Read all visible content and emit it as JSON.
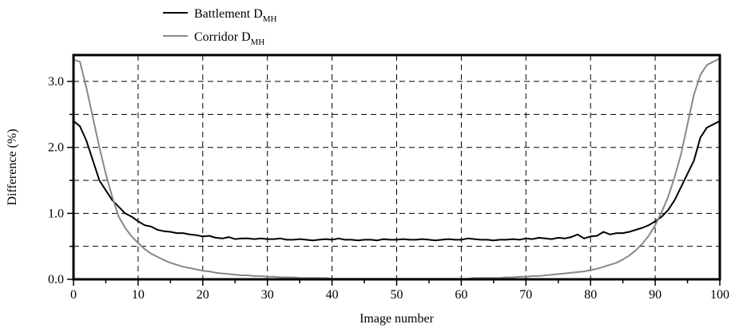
{
  "chart_data": {
    "type": "line",
    "title": "",
    "xlabel": "Image number",
    "ylabel": "Difference (%)",
    "xlim": [
      0,
      100
    ],
    "ylim": [
      0,
      3.4
    ],
    "x_ticks": [
      "0",
      "10",
      "20",
      "30",
      "40",
      "50",
      "60",
      "70",
      "80",
      "90",
      "100"
    ],
    "y_ticks": [
      "0.0",
      "1.0",
      "2.0",
      "3.0"
    ],
    "grid": "dashed, every 10 on x and every 0.5 on y",
    "legend_position": "top-left, above plot",
    "series": [
      {
        "name": "Battlement D",
        "name_subscript": "MH",
        "color": "#000000",
        "x": [
          0,
          1,
          2,
          3,
          4,
          5,
          6,
          7,
          8,
          9,
          10,
          11,
          12,
          13,
          14,
          15,
          16,
          17,
          18,
          19,
          20,
          21,
          22,
          23,
          24,
          25,
          26,
          27,
          28,
          29,
          30,
          31,
          32,
          33,
          34,
          35,
          36,
          37,
          38,
          39,
          40,
          41,
          42,
          43,
          44,
          45,
          46,
          47,
          48,
          49,
          50,
          51,
          52,
          53,
          54,
          55,
          56,
          57,
          58,
          59,
          60,
          61,
          62,
          63,
          64,
          65,
          66,
          67,
          68,
          69,
          70,
          71,
          72,
          73,
          74,
          75,
          76,
          77,
          78,
          79,
          80,
          81,
          82,
          83,
          84,
          85,
          86,
          87,
          88,
          89,
          90,
          91,
          92,
          93,
          94,
          95,
          96,
          97,
          98,
          99,
          100
        ],
        "values": [
          2.4,
          2.32,
          2.1,
          1.8,
          1.5,
          1.35,
          1.2,
          1.1,
          1.0,
          0.95,
          0.88,
          0.82,
          0.8,
          0.75,
          0.73,
          0.72,
          0.7,
          0.7,
          0.68,
          0.67,
          0.65,
          0.66,
          0.63,
          0.62,
          0.64,
          0.61,
          0.62,
          0.62,
          0.61,
          0.62,
          0.61,
          0.61,
          0.62,
          0.6,
          0.6,
          0.61,
          0.6,
          0.59,
          0.6,
          0.61,
          0.6,
          0.62,
          0.6,
          0.6,
          0.59,
          0.6,
          0.6,
          0.59,
          0.61,
          0.6,
          0.6,
          0.61,
          0.6,
          0.6,
          0.61,
          0.6,
          0.59,
          0.6,
          0.61,
          0.6,
          0.6,
          0.62,
          0.61,
          0.6,
          0.6,
          0.59,
          0.6,
          0.6,
          0.61,
          0.6,
          0.62,
          0.61,
          0.63,
          0.62,
          0.61,
          0.63,
          0.62,
          0.64,
          0.68,
          0.62,
          0.65,
          0.66,
          0.72,
          0.68,
          0.7,
          0.7,
          0.72,
          0.75,
          0.78,
          0.82,
          0.88,
          0.95,
          1.05,
          1.2,
          1.4,
          1.6,
          1.8,
          2.15,
          2.3,
          2.35,
          2.4
        ]
      },
      {
        "name": "Corridor D",
        "name_subscript": "MH",
        "color": "#888888",
        "x": [
          0,
          1,
          2,
          3,
          4,
          5,
          6,
          7,
          8,
          9,
          10,
          11,
          12,
          13,
          14,
          15,
          16,
          17,
          18,
          19,
          20,
          21,
          22,
          23,
          24,
          25,
          26,
          27,
          28,
          29,
          30,
          31,
          32,
          33,
          34,
          35,
          36,
          37,
          38,
          39,
          40,
          41,
          42,
          43,
          44,
          45,
          46,
          47,
          48,
          49,
          50,
          51,
          52,
          53,
          54,
          55,
          56,
          57,
          58,
          59,
          60,
          61,
          62,
          63,
          64,
          65,
          66,
          67,
          68,
          69,
          70,
          71,
          72,
          73,
          74,
          75,
          76,
          77,
          78,
          79,
          80,
          81,
          82,
          83,
          84,
          85,
          86,
          87,
          88,
          89,
          90,
          91,
          92,
          93,
          94,
          95,
          96,
          97,
          98,
          99,
          100
        ],
        "values": [
          3.33,
          3.3,
          2.9,
          2.45,
          2.0,
          1.6,
          1.25,
          0.95,
          0.78,
          0.65,
          0.55,
          0.46,
          0.39,
          0.34,
          0.29,
          0.25,
          0.22,
          0.19,
          0.17,
          0.15,
          0.13,
          0.12,
          0.1,
          0.09,
          0.08,
          0.07,
          0.06,
          0.06,
          0.05,
          0.05,
          0.04,
          0.04,
          0.03,
          0.03,
          0.03,
          0.02,
          0.02,
          0.02,
          0.02,
          0.02,
          0.01,
          0.01,
          0.01,
          0.01,
          0.01,
          0.01,
          0.01,
          0.01,
          0.01,
          0.01,
          0.01,
          0.01,
          0.01,
          0.01,
          0.01,
          0.01,
          0.01,
          0.01,
          0.01,
          0.01,
          0.01,
          0.01,
          0.02,
          0.02,
          0.02,
          0.02,
          0.02,
          0.03,
          0.03,
          0.04,
          0.04,
          0.05,
          0.05,
          0.06,
          0.07,
          0.08,
          0.09,
          0.1,
          0.11,
          0.12,
          0.14,
          0.16,
          0.19,
          0.22,
          0.25,
          0.3,
          0.36,
          0.44,
          0.54,
          0.66,
          0.82,
          1.02,
          1.25,
          1.55,
          1.9,
          2.35,
          2.8,
          3.1,
          3.25,
          3.3,
          3.35
        ]
      }
    ]
  }
}
